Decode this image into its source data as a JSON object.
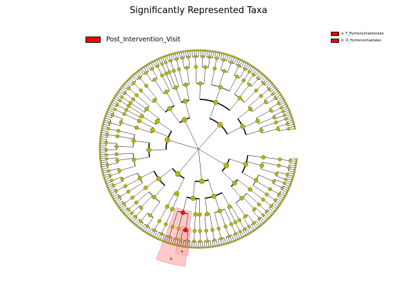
{
  "chart_data": {
    "type": "cladogram",
    "title": "Significantly Represented Taxa",
    "groups": [
      {
        "name": "Post_Intervention_Visit",
        "color": "#ff0000"
      }
    ],
    "highlighted_taxa": [
      {
        "marker": "a",
        "label": "a: F_Hymenochaetaceae",
        "rank": "family",
        "group": "Post_Intervention_Visit"
      },
      {
        "marker": "b",
        "label": "b: O_Hymenochaetales",
        "rank": "order",
        "group": "Post_Intervention_Visit"
      }
    ],
    "node_color": "#b5b500",
    "highlight_shade": "#ffb3b3",
    "grid": false
  }
}
